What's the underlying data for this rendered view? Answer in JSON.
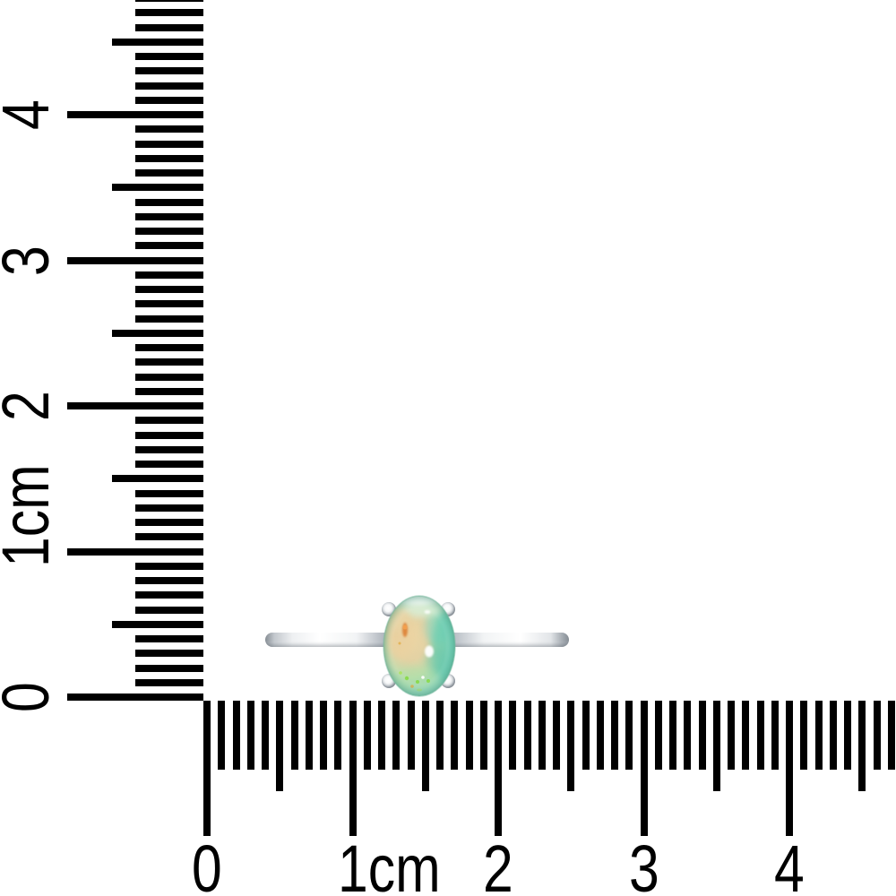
{
  "rulers": {
    "unit": "cm",
    "vertical": {
      "labels": [
        "0",
        "1cm",
        "2",
        "3",
        "4"
      ]
    },
    "horizontal": {
      "labels": [
        "0",
        "1cm",
        "2",
        "3",
        "4"
      ]
    }
  },
  "product": {
    "item": "silver-ring-with-oval-opal-cabochon",
    "stone_shape": "oval",
    "prong_count": 4
  },
  "colors": {
    "background": "#ffffff",
    "ruler_ink": "#000000",
    "band_silver_light": "#ffffff",
    "band_silver_mid": "#c3c8cd",
    "band_silver_dark": "#868d94",
    "prong_silver": "#9aa1a8",
    "stone_peach": "#ead1a0",
    "stone_orange": "#dd8136",
    "stone_mint": "#d8efd8",
    "stone_aqua": "#7ed5c5",
    "stone_teal": "#57c9ad",
    "stone_lime": "#86d944",
    "stone_glint": "#ffffff"
  }
}
